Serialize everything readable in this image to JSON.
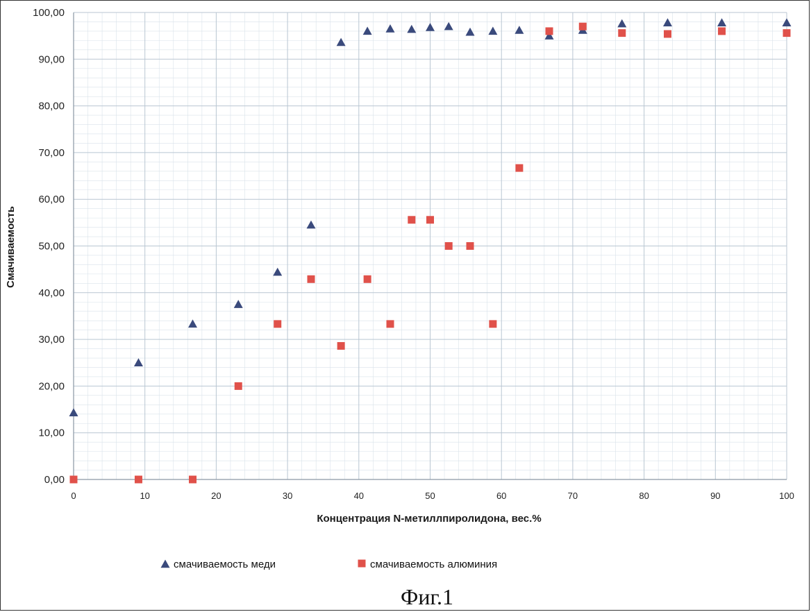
{
  "chart_data": {
    "type": "scatter",
    "title": "",
    "xlabel": "Концентрация N-метиллпиролидона, вес.%",
    "ylabel": "Смачиваемость",
    "xlim": [
      0,
      100
    ],
    "ylim": [
      0,
      100
    ],
    "x_ticks": [
      "0",
      "10",
      "20",
      "30",
      "40",
      "50",
      "60",
      "70",
      "80",
      "90",
      "100"
    ],
    "y_ticks": [
      "0,00",
      "10,00",
      "20,00",
      "30,00",
      "40,00",
      "50,00",
      "60,00",
      "70,00",
      "80,00",
      "90,00",
      "100,00"
    ],
    "grid": true,
    "legend_position": "bottom",
    "series": [
      {
        "name": "смачиваемость меди",
        "marker": "triangle",
        "color": "#3a4a7c",
        "points": [
          [
            0,
            14.3
          ],
          [
            9.1,
            25
          ],
          [
            16.7,
            33.3
          ],
          [
            23.1,
            37.5
          ],
          [
            28.6,
            44.4
          ],
          [
            33.3,
            54.5
          ],
          [
            37.5,
            93.6
          ],
          [
            41.2,
            96
          ],
          [
            44.4,
            96.5
          ],
          [
            47.4,
            96.4
          ],
          [
            50,
            96.8
          ],
          [
            52.6,
            97
          ],
          [
            55.6,
            95.8
          ],
          [
            58.8,
            96
          ],
          [
            62.5,
            96.2
          ],
          [
            66.7,
            95
          ],
          [
            71.4,
            96.2
          ],
          [
            76.9,
            97.6
          ],
          [
            83.3,
            97.8
          ],
          [
            90.9,
            97.8
          ],
          [
            100,
            97.8
          ]
        ]
      },
      {
        "name": "смачиваемость алюминия",
        "marker": "square",
        "color": "#e0514a",
        "points": [
          [
            0,
            0
          ],
          [
            9.1,
            0
          ],
          [
            16.7,
            0
          ],
          [
            23.1,
            20
          ],
          [
            28.6,
            33.3
          ],
          [
            33.3,
            42.9
          ],
          [
            37.5,
            28.6
          ],
          [
            41.2,
            42.9
          ],
          [
            44.4,
            33.3
          ],
          [
            47.4,
            55.6
          ],
          [
            50,
            55.6
          ],
          [
            52.6,
            50
          ],
          [
            55.6,
            50
          ],
          [
            58.8,
            33.3
          ],
          [
            62.5,
            66.7
          ],
          [
            66.7,
            96
          ],
          [
            71.4,
            97
          ],
          [
            76.9,
            95.6
          ],
          [
            83.3,
            95.4
          ],
          [
            90.9,
            96
          ],
          [
            100,
            95.6
          ]
        ]
      }
    ]
  },
  "caption": "Фиг.1"
}
